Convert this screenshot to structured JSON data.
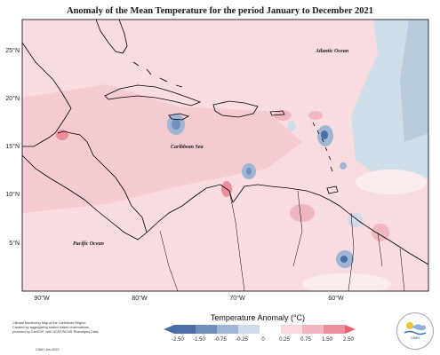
{
  "title": "Anomaly of the Mean Temperature for the period January to December 2021",
  "map": {
    "latitude_labels": [
      "25°N",
      "20°N",
      "15°N",
      "10°N",
      "5°N"
    ],
    "longitude_labels": [
      "90°W",
      "80°W",
      "70°W",
      "60°W"
    ],
    "ocean_labels": {
      "atlantic": "Atlantic Ocean",
      "caribbean": "Caribbean Sea",
      "pacific": "Pacific Ocean"
    }
  },
  "legend": {
    "title": "Temperature Anomaly (°C)",
    "ticks": [
      "-2.50",
      "-1.50",
      "-0.75",
      "-0.25",
      "0",
      "0.25",
      "0.75",
      "1.50",
      "2.50"
    ],
    "colors": [
      "#4a6fa5",
      "#6f8fbc",
      "#9fb5d3",
      "#cfdbe8",
      "#ffffff",
      "#f8d9de",
      "#f2b6c0",
      "#ec8e9c",
      "#e86070"
    ]
  },
  "credit": {
    "lines": [
      "Climate Monitoring Map of the Caribbean Region.",
      "Created by aggregating station based observations,",
      "provided by CariCOF, with NCEP/NCAR Reanalysis Data."
    ],
    "date": "CIMH Jan-2022"
  },
  "logo": {
    "text": "CIMH",
    "icon": "cimh-logo-icon"
  }
}
